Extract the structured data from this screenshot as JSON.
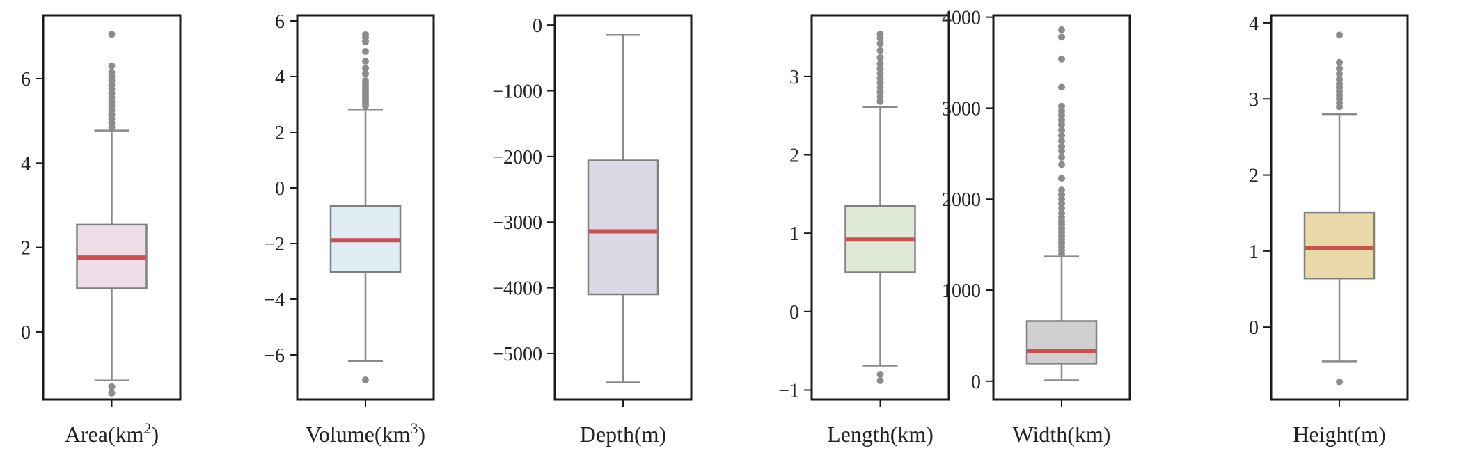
{
  "chart_data": [
    {
      "type": "box",
      "xlabel": "Area(km²)",
      "xlabel_parts": [
        "Area(km",
        "2",
        ")"
      ],
      "ylim": [
        -1.6,
        7.5
      ],
      "yticks": [
        0,
        2,
        4,
        6
      ],
      "box": {
        "whislo": -1.15,
        "q1": 1.03,
        "med": 1.76,
        "q3": 2.54,
        "whishi": 4.77
      },
      "outliers": [
        -1.3,
        -1.45,
        4.85,
        4.95,
        5.05,
        5.15,
        5.25,
        5.35,
        5.45,
        5.55,
        5.65,
        5.75,
        5.85,
        5.95,
        6.05,
        6.15,
        6.3,
        7.05
      ],
      "box_color": "#efdde7"
    },
    {
      "type": "box",
      "xlabel": "Volume(km³)",
      "xlabel_parts": [
        "Volume(km",
        "3",
        ")"
      ],
      "ylim": [
        -7.6,
        6.2
      ],
      "yticks": [
        -6,
        -4,
        -2,
        0,
        2,
        4,
        6
      ],
      "box": {
        "whislo": -6.22,
        "q1": -3.02,
        "med": -1.88,
        "q3": -0.65,
        "whishi": 2.82
      },
      "outliers": [
        -6.9,
        2.95,
        3.05,
        3.15,
        3.25,
        3.35,
        3.45,
        3.55,
        3.65,
        3.75,
        3.85,
        4.1,
        4.3,
        4.55,
        4.9,
        5.25,
        5.4,
        5.5
      ],
      "box_color": "#e1edf4"
    },
    {
      "type": "box",
      "xlabel": "Depth(m)",
      "ylim": [
        -5700,
        150
      ],
      "yticks": [
        -5000,
        -4000,
        -3000,
        -2000,
        -1000,
        0
      ],
      "box": {
        "whislo": -5440,
        "q1": -4100,
        "med": -3140,
        "q3": -2060,
        "whishi": -150
      },
      "outliers": [],
      "box_color": "#dcd9e7"
    },
    {
      "type": "box",
      "xlabel": "Length(km)",
      "ylim": [
        -1.12,
        3.78
      ],
      "yticks": [
        -1,
        0,
        1,
        2,
        3
      ],
      "box": {
        "whislo": -0.69,
        "q1": 0.5,
        "med": 0.92,
        "q3": 1.35,
        "whishi": 2.61
      },
      "outliers": [
        -0.8,
        -0.88,
        2.68,
        2.74,
        2.8,
        2.86,
        2.92,
        2.98,
        3.04,
        3.1,
        3.16,
        3.24,
        3.33,
        3.42,
        3.49,
        3.54
      ],
      "box_color": "#dfe9d8"
    },
    {
      "type": "box",
      "xlabel": "Width(km)",
      "ylim": [
        -200,
        4020
      ],
      "yticks": [
        0,
        1000,
        2000,
        3000,
        4000
      ],
      "box": {
        "whislo": 10,
        "q1": 195,
        "med": 330,
        "q3": 660,
        "whishi": 1370
      },
      "outliers": [
        1400,
        1440,
        1480,
        1520,
        1560,
        1600,
        1640,
        1680,
        1720,
        1760,
        1800,
        1850,
        1900,
        1950,
        2000,
        2050,
        2100,
        2230,
        2380,
        2460,
        2530,
        2580,
        2640,
        2700,
        2760,
        2820,
        2870,
        2920,
        2970,
        3020,
        3230,
        3540,
        3780,
        3860
      ],
      "box_color": "#d0d0d2"
    },
    {
      "type": "box",
      "xlabel": "Height(m)",
      "ylim": [
        -0.95,
        4.1
      ],
      "yticks": [
        0,
        1,
        2,
        3,
        4
      ],
      "box": {
        "whislo": -0.45,
        "q1": 0.64,
        "med": 1.04,
        "q3": 1.51,
        "whishi": 2.8
      },
      "outliers": [
        -0.72,
        2.9,
        2.95,
        3.0,
        3.05,
        3.1,
        3.15,
        3.2,
        3.26,
        3.33,
        3.4,
        3.48,
        3.84
      ],
      "box_color": "#e9d9a9"
    }
  ]
}
